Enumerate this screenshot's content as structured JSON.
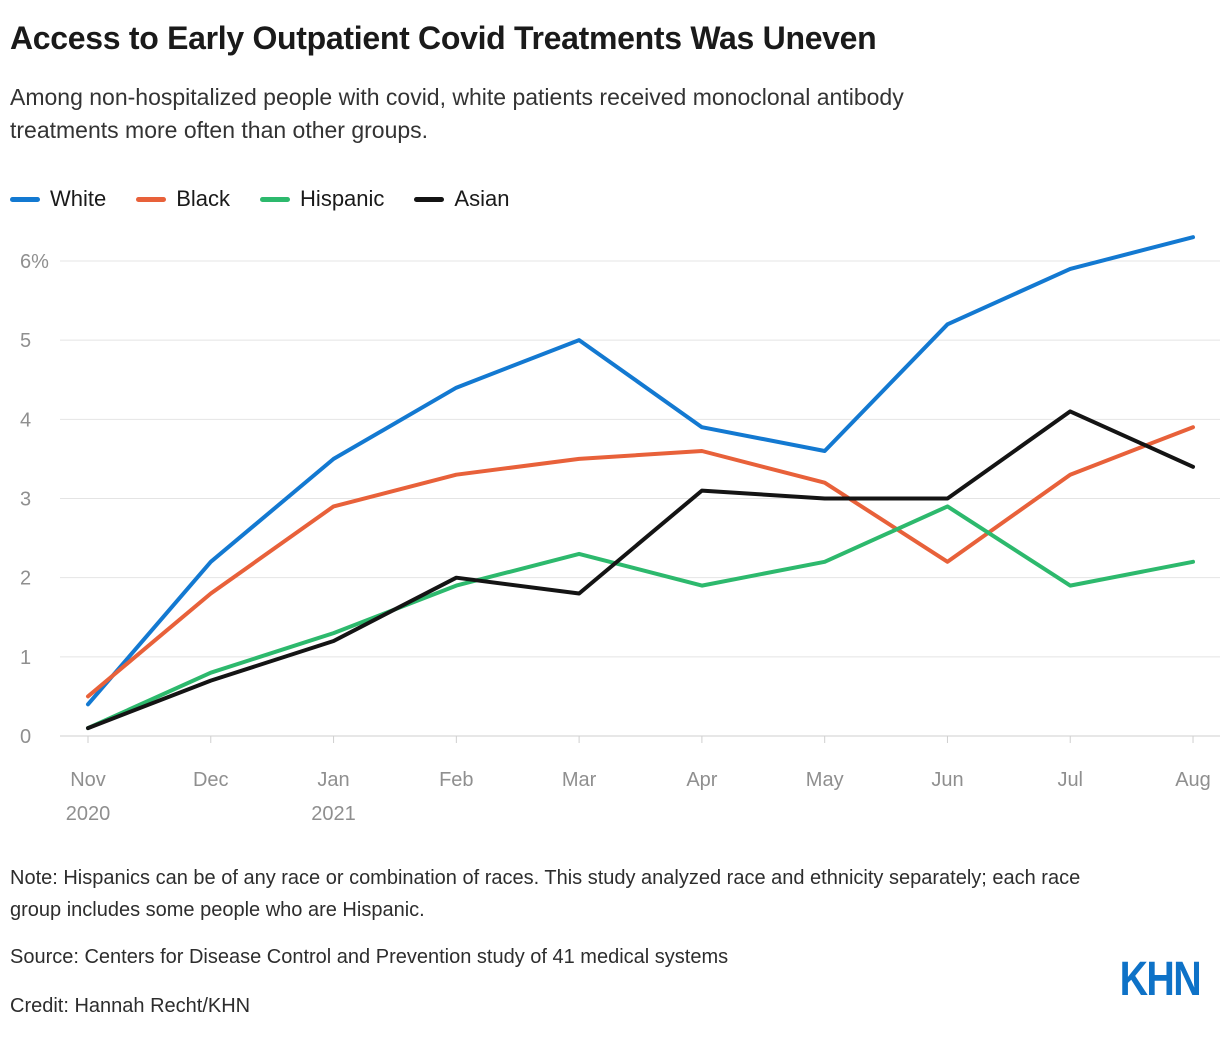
{
  "header": {
    "title": "Access to Early Outpatient Covid Treatments Was Uneven",
    "subtitle_line1": "Among non-hospitalized people with covid, white patients received monoclonal antibody",
    "subtitle_line2": "treatments more often than other groups."
  },
  "chart_data": {
    "type": "line",
    "title": "Access to Early Outpatient Covid Treatments Was Uneven",
    "subtitle": "Among non-hospitalized people with covid, white patients received monoclonal antibody treatments more often than other groups.",
    "categories": [
      {
        "label": "Nov",
        "year": "2020"
      },
      {
        "label": "Dec"
      },
      {
        "label": "Jan",
        "year": "2021"
      },
      {
        "label": "Feb"
      },
      {
        "label": "Mar"
      },
      {
        "label": "Apr"
      },
      {
        "label": "May"
      },
      {
        "label": "Jun"
      },
      {
        "label": "Jul"
      },
      {
        "label": "Aug"
      }
    ],
    "series": [
      {
        "name": "White",
        "color": "#1379D1",
        "values": [
          0.4,
          2.2,
          3.5,
          4.4,
          5.0,
          3.9,
          3.6,
          5.2,
          5.9,
          6.3
        ]
      },
      {
        "name": "Black",
        "color": "#E8613A",
        "values": [
          0.5,
          1.8,
          2.9,
          3.3,
          3.5,
          3.6,
          3.2,
          2.2,
          3.3,
          3.9
        ]
      },
      {
        "name": "Hispanic",
        "color": "#2DB96D",
        "values": [
          0.1,
          0.8,
          1.3,
          1.9,
          2.3,
          1.9,
          2.2,
          2.9,
          1.9,
          2.2
        ]
      },
      {
        "name": "Asian",
        "color": "#141414",
        "values": [
          0.1,
          0.7,
          1.2,
          2.0,
          1.8,
          3.1,
          3.0,
          3.0,
          4.1,
          3.4
        ]
      }
    ],
    "xlabel": "",
    "ylabel": "",
    "ylim": [
      0,
      6
    ],
    "yticks": [
      0,
      1,
      2,
      3,
      4,
      5,
      6
    ],
    "ytick_labels": [
      "0",
      "1",
      "2",
      "3",
      "4",
      "5",
      "6%"
    ],
    "grid": "horizontal",
    "legend_position": "top-left",
    "unit": "percent"
  },
  "footer": {
    "note_line1": "Note: Hispanics can be of any race or combination of races. This study analyzed race and ethnicity separately; each race",
    "note_line2": "group includes some people who are Hispanic.",
    "source": "Source: Centers for Disease Control and Prevention study of 41 medical systems",
    "credit": "Credit: Hannah Recht/KHN",
    "logo": "KHN",
    "logo_color": "#0e72c7"
  }
}
